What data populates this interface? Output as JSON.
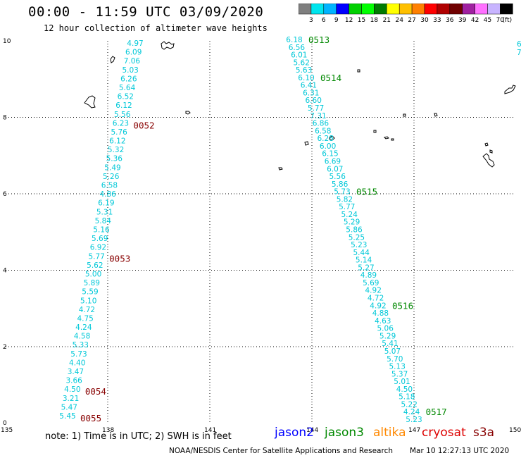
{
  "header": {
    "title": "00:00 - 11:59 UTC 03/09/2020",
    "subtitle": "12 hour collection of altimeter wave heights"
  },
  "colorbar": {
    "levels": [
      "3",
      "6",
      "9",
      "12",
      "15",
      "18",
      "21",
      "24",
      "27",
      "30",
      "33",
      "36",
      "39",
      "42",
      "45",
      "70"
    ],
    "unit": "(ft)",
    "colors": [
      "#7f7f7f",
      "#00e5ee",
      "#00b4ff",
      "#0000ff",
      "#00d000",
      "#00ff00",
      "#007a00",
      "#ffff00",
      "#ffc000",
      "#ff8000",
      "#ff0000",
      "#b00000",
      "#700000",
      "#a020a0",
      "#ff70ff",
      "#c8b4ff",
      "#000000"
    ]
  },
  "axes": {
    "x_ticks": [
      "135",
      "138",
      "141",
      "144",
      "147",
      "150"
    ],
    "y_ticks": [
      "10",
      "8",
      "6",
      "4",
      "2",
      "0"
    ]
  },
  "colors": {
    "swh": "#00c8d8",
    "jason2": "#0000ff",
    "jason3": "#008800",
    "altika": "#ff8800",
    "cryosat": "#dd0000",
    "s3a": "#880000"
  },
  "track_west": {
    "values": [
      "4.97",
      "6.09",
      "7.06",
      "5.03",
      "6.26",
      "5.64",
      "6.52",
      "6.12",
      "5.56",
      "6.23",
      "5.76",
      "6.12",
      "5.32",
      "5.36",
      "5.49",
      "5.26",
      "6.58",
      "4.86",
      "6.19",
      "5.31",
      "5.84",
      "5.16",
      "5.69",
      "6.92",
      "5.77",
      "5.62",
      "5.00",
      "5.89",
      "5.59",
      "5.10",
      "4.72",
      "4.75",
      "4.24",
      "4.58",
      "5.33",
      "5.73",
      "4.40",
      "3.47",
      "3.66",
      "4.50",
      "3.21",
      "5.47",
      "5.45"
    ],
    "times": [
      {
        "label": "0052",
        "row": 9
      },
      {
        "label": "0053",
        "row": 24
      },
      {
        "label": "0054",
        "row": 39
      },
      {
        "label": "0055",
        "row": 42
      }
    ]
  },
  "track_east": {
    "values": [
      "6.18",
      "6.56",
      "6.01",
      "5.62",
      "5.63",
      "6.10",
      "6.41",
      "6.31",
      "6.60",
      "5.77",
      "7.31",
      "6.86",
      "6.58",
      "6.28",
      "6.00",
      "6.15",
      "6.69",
      "6.07",
      "5.56",
      "5.86",
      "5.73",
      "5.82",
      "5.77",
      "5.24",
      "5.29",
      "5.86",
      "5.25",
      "5.23",
      "5.44",
      "5.14",
      "5.27",
      "4.89",
      "5.69",
      "4.92",
      "4.72",
      "4.92",
      "4.88",
      "4.63",
      "5.06",
      "5.29",
      "5.41",
      "5.07",
      "5.70",
      "5.13",
      "5.37",
      "5.01",
      "4.50",
      "5.18",
      "5.22",
      "4.24",
      "5.23"
    ],
    "times": [
      {
        "label": "0513",
        "row": 0
      },
      {
        "label": "0514",
        "row": 5
      },
      {
        "label": "0515",
        "row": 20
      },
      {
        "label": "0516",
        "row": 35
      },
      {
        "label": "0517",
        "row": 49
      }
    ]
  },
  "track_edge": {
    "values": [
      "6",
      "7"
    ]
  },
  "legend": {
    "note": "note: 1) Time is in UTC; 2) SWH is in feet",
    "jason2": "jason2",
    "jason3": "jason3",
    "altika": "altika",
    "cryosat": "cryosat",
    "s3a": "s3a"
  },
  "footer": {
    "org": "NOAA/NESDIS Center for Satellite Applications and Research",
    "timestamp": "Mar 10 12:27:13 UTC 2020"
  }
}
